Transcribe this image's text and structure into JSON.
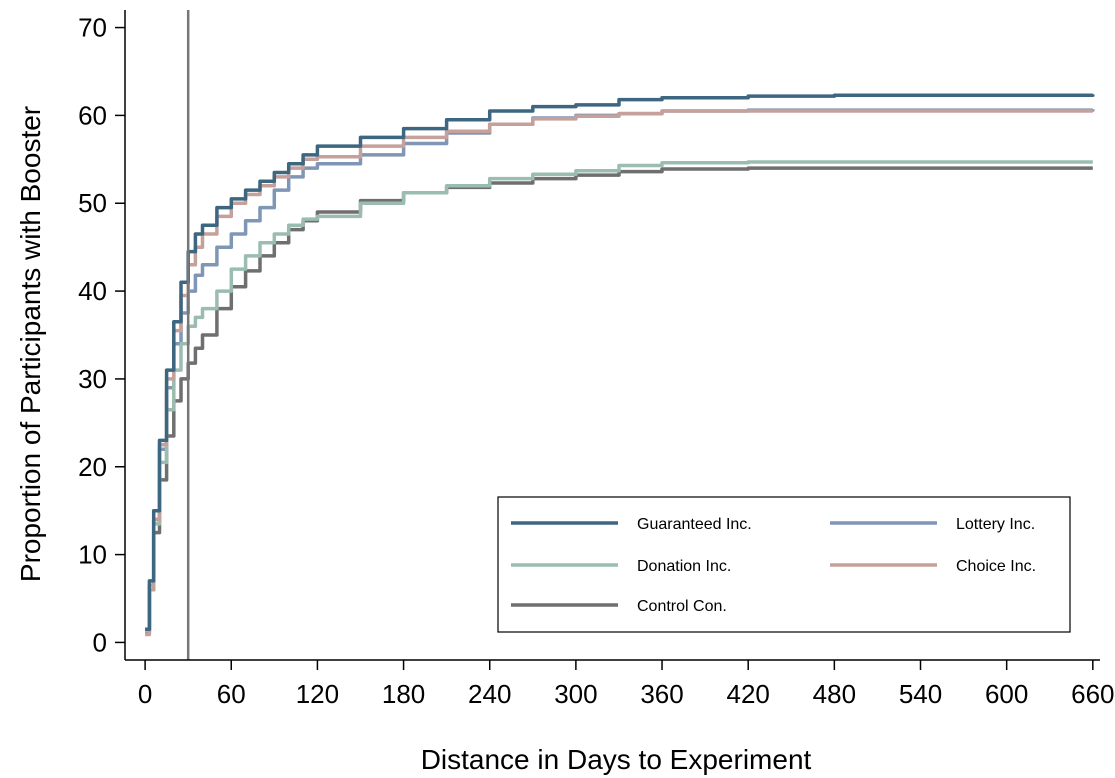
{
  "chart_data": {
    "type": "line",
    "xlabel": "Distance in Days to Experiment",
    "ylabel": "Proportion of Participants with Booster",
    "xlim": [
      -14,
      665
    ],
    "ylim": [
      -2,
      72
    ],
    "xticks": [
      0,
      60,
      120,
      180,
      240,
      300,
      360,
      420,
      480,
      540,
      600,
      660
    ],
    "yticks": [
      0,
      10,
      20,
      30,
      40,
      50,
      60,
      70
    ],
    "reference_line_x": 30,
    "grid": false,
    "legend_position": "bottom-right",
    "series": [
      {
        "name": "Guaranteed Inc.",
        "color": "#3d6680",
        "x": [
          0,
          3,
          6,
          10,
          15,
          20,
          25,
          30,
          35,
          40,
          50,
          60,
          70,
          80,
          90,
          100,
          110,
          120,
          150,
          180,
          210,
          240,
          270,
          300,
          330,
          360,
          420,
          480,
          540,
          600,
          660
        ],
        "y": [
          1.5,
          7,
          15,
          23,
          31,
          36.5,
          41,
          44.5,
          46.5,
          47.5,
          49.5,
          50.5,
          51.5,
          52.5,
          53.5,
          54.5,
          55.5,
          56.5,
          57.5,
          58.5,
          59.5,
          60.5,
          61,
          61.2,
          61.8,
          62,
          62.2,
          62.3,
          62.3,
          62.3,
          62.4
        ]
      },
      {
        "name": "Lottery Inc.",
        "color": "#8096b5",
        "x": [
          0,
          3,
          6,
          10,
          15,
          20,
          25,
          30,
          35,
          40,
          50,
          60,
          70,
          80,
          90,
          100,
          110,
          120,
          150,
          180,
          210,
          240,
          270,
          300,
          330,
          360,
          420,
          480,
          540,
          600,
          660
        ],
        "y": [
          1.2,
          6.5,
          14,
          22,
          29,
          34,
          37.5,
          40,
          41.8,
          43,
          45,
          46.5,
          48,
          49.5,
          51.5,
          53,
          54,
          54.5,
          55.5,
          56.8,
          58,
          59,
          59.7,
          60,
          60.2,
          60.5,
          60.6,
          60.6,
          60.6,
          60.6,
          60.7
        ]
      },
      {
        "name": "Donation Inc.",
        "color": "#9bbdb0",
        "x": [
          0,
          3,
          6,
          10,
          15,
          20,
          25,
          30,
          35,
          40,
          50,
          60,
          70,
          80,
          90,
          100,
          110,
          120,
          150,
          180,
          210,
          240,
          270,
          300,
          330,
          360,
          420,
          480,
          540,
          600,
          660
        ],
        "y": [
          1.4,
          6.5,
          13.5,
          20.5,
          26.5,
          31,
          34,
          36,
          37,
          38,
          40,
          42.5,
          44,
          45.5,
          46.5,
          47.5,
          48.2,
          48.5,
          50,
          51.2,
          52,
          52.8,
          53.3,
          53.7,
          54.3,
          54.6,
          54.7,
          54.7,
          54.7,
          54.7,
          54.7
        ]
      },
      {
        "name": "Choice Inc.",
        "color": "#c6a19c",
        "x": [
          0,
          3,
          6,
          10,
          15,
          20,
          25,
          30,
          35,
          40,
          50,
          60,
          70,
          80,
          90,
          100,
          110,
          120,
          150,
          180,
          210,
          240,
          270,
          300,
          330,
          360,
          420,
          480,
          540,
          600,
          660
        ],
        "y": [
          0.9,
          6,
          14,
          22.5,
          30,
          35.5,
          39.5,
          43,
          45,
          46.5,
          48.5,
          50,
          51,
          52,
          53,
          54,
          55,
          55.3,
          56.5,
          57.5,
          58.2,
          59,
          59.6,
          59.9,
          60.2,
          60.5,
          60.5,
          60.5,
          60.5,
          60.5,
          60.5
        ]
      },
      {
        "name": "Control Con.",
        "color": "#6f6f6f",
        "x": [
          0,
          3,
          6,
          10,
          15,
          20,
          25,
          30,
          35,
          40,
          50,
          60,
          70,
          80,
          90,
          100,
          110,
          120,
          150,
          180,
          210,
          240,
          270,
          300,
          330,
          360,
          420,
          480,
          540,
          600,
          660
        ],
        "y": [
          1.5,
          6,
          12.5,
          18.5,
          23.5,
          27.5,
          30,
          31.8,
          33.5,
          35,
          38,
          40.5,
          42.3,
          44,
          45.5,
          47,
          48,
          49,
          50.3,
          51.2,
          51.8,
          52.3,
          52.8,
          53.2,
          53.6,
          53.9,
          54,
          54,
          54,
          54,
          54
        ]
      }
    ],
    "legend": [
      {
        "label": "Guaranteed Inc.",
        "color": "#3d6680"
      },
      {
        "label": "Lottery Inc.",
        "color": "#8096b5"
      },
      {
        "label": "Donation Inc.",
        "color": "#9bbdb0"
      },
      {
        "label": "Choice Inc.",
        "color": "#c6a19c"
      },
      {
        "label": "Control Con.",
        "color": "#6f6f6f"
      }
    ]
  }
}
